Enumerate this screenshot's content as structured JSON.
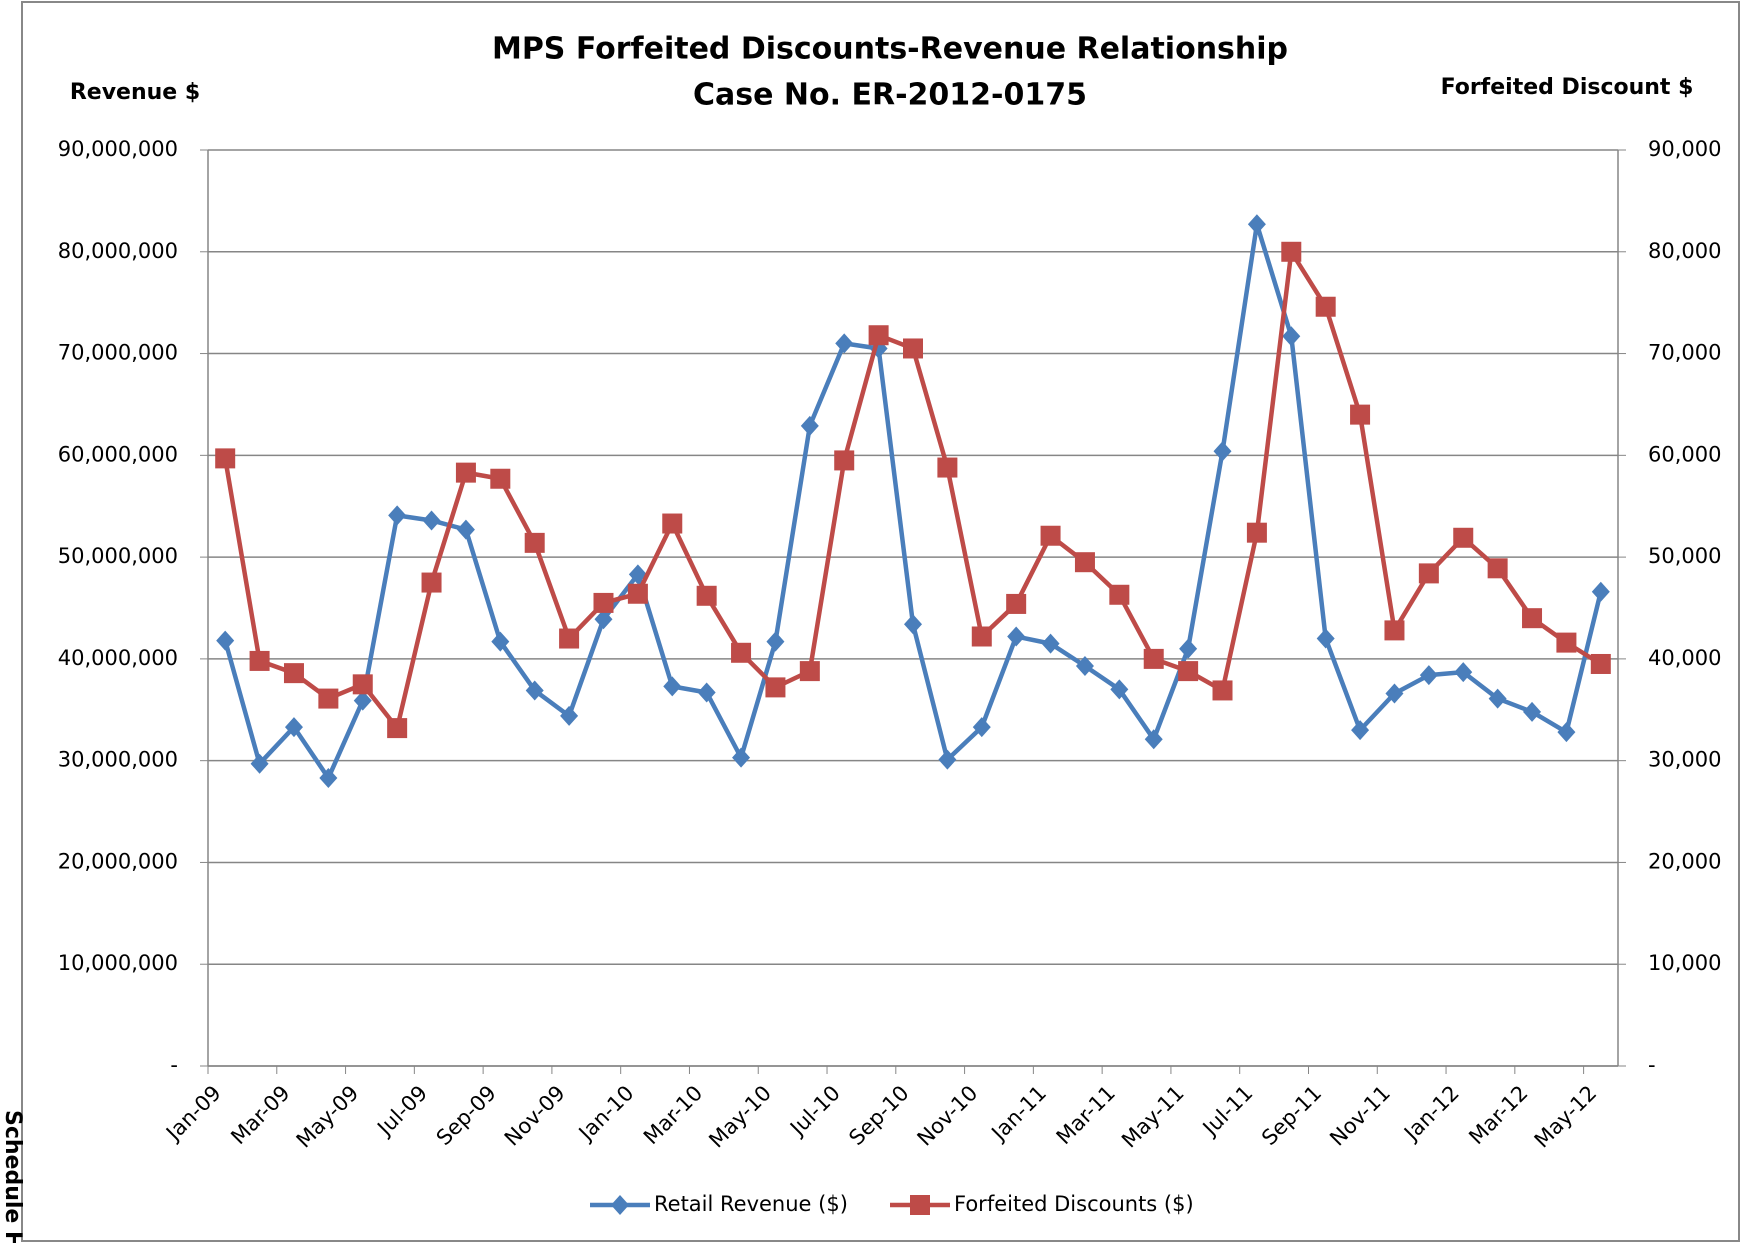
{
  "chart_data": {
    "type": "line",
    "title": "MPS Forfeited Discounts-Revenue Relationship",
    "subtitle": "Case No. ER-2012-0175",
    "y_label": "Revenue $",
    "y2_label": "Forfeited Discount $",
    "side_note": "Schedule H",
    "categories": [
      "Jan-09",
      null,
      "Mar-09",
      null,
      "May-09",
      null,
      "Jul-09",
      null,
      "Sep-09",
      null,
      "Nov-09",
      null,
      "Jan-10",
      null,
      "Mar-10",
      null,
      "May-10",
      null,
      "Jul-10",
      null,
      "Sep-10",
      null,
      "Nov-10",
      null,
      "Jan-11",
      null,
      "Mar-11",
      null,
      "May-11",
      null,
      "Jul-11",
      null,
      "Sep-11",
      null,
      "Nov-11",
      null,
      "Jan-12",
      null,
      "Mar-12",
      null,
      "May-12"
    ],
    "series": [
      {
        "name": "Retail Revenue ($)",
        "color": "#4a7ebb",
        "marker": "diamond",
        "axis": "y",
        "values": [
          41800000,
          29700000,
          33300000,
          28300000,
          35900000,
          54100000,
          53600000,
          52700000,
          41700000,
          36900000,
          34400000,
          43900000,
          48300000,
          37300000,
          36700000,
          30300000,
          41700000,
          62900000,
          71000000,
          70500000,
          43400000,
          30100000,
          33300000,
          42200000,
          41500000,
          39300000,
          37000000,
          32100000,
          41000000,
          60400000,
          82700000,
          71700000,
          42000000,
          33000000,
          36600000,
          38400000,
          38700000,
          36100000,
          34800000,
          32800000,
          46600000
        ]
      },
      {
        "name": "Forfeited Discounts ($)",
        "color": "#be4b48",
        "marker": "square",
        "axis": "y2",
        "values": [
          59700,
          39800,
          38600,
          36100,
          37500,
          33200,
          47500,
          58300,
          57700,
          51400,
          42000,
          45500,
          46400,
          53300,
          46200,
          40600,
          37200,
          38800,
          59500,
          71800,
          70500,
          58800,
          42200,
          45400,
          52100,
          49500,
          46300,
          40000,
          38800,
          36900,
          52400,
          80000,
          74600,
          64000,
          42800,
          48400,
          51900,
          48900,
          44000,
          41600,
          39500
        ]
      }
    ],
    "ylim": [
      0,
      90000000
    ],
    "yticks": [
      {
        "value": 0,
        "label": "-"
      },
      {
        "value": 10000000,
        "label": "10,000,000"
      },
      {
        "value": 20000000,
        "label": "20,000,000"
      },
      {
        "value": 30000000,
        "label": "30,000,000"
      },
      {
        "value": 40000000,
        "label": "40,000,000"
      },
      {
        "value": 50000000,
        "label": "50,000,000"
      },
      {
        "value": 60000000,
        "label": "60,000,000"
      },
      {
        "value": 70000000,
        "label": "70,000,000"
      },
      {
        "value": 80000000,
        "label": "80,000,000"
      },
      {
        "value": 90000000,
        "label": "90,000,000"
      }
    ],
    "y2lim": [
      0,
      90000
    ],
    "y2ticks": [
      {
        "value": 0,
        "label": "-"
      },
      {
        "value": 10000,
        "label": "10,000"
      },
      {
        "value": 20000,
        "label": "20,000"
      },
      {
        "value": 30000,
        "label": "30,000"
      },
      {
        "value": 40000,
        "label": "40,000"
      },
      {
        "value": 50000,
        "label": "50,000"
      },
      {
        "value": 60000,
        "label": "60,000"
      },
      {
        "value": 70000,
        "label": "70,000"
      },
      {
        "value": 80000,
        "label": "80,000"
      },
      {
        "value": 90000,
        "label": "90,000"
      }
    ],
    "grid": true,
    "legend": "bottom"
  }
}
